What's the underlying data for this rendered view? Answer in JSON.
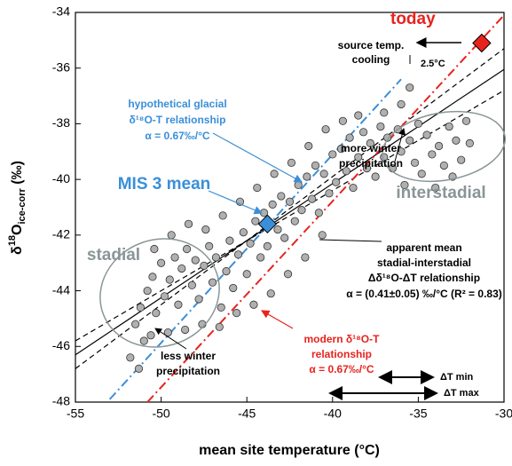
{
  "chart_data": {
    "type": "scatter",
    "xlabel": "mean site temperature (°C)",
    "ylabel_parts": [
      "δ",
      "18",
      "O",
      "ice-corr",
      " (‰)"
    ],
    "xlim": [
      -55,
      -30
    ],
    "xticks": [
      -55,
      -50,
      -45,
      -40,
      -35,
      -30
    ],
    "ylim": [
      -48,
      -34
    ],
    "yticks": [
      -48,
      -46,
      -44,
      -42,
      -40,
      -38,
      -36,
      -34
    ],
    "series": [
      {
        "color": "#b0b0b0",
        "x": [
          -51.5,
          -51.2,
          -51,
          -50.8,
          -50.5,
          -50.3,
          -50,
          -49.8,
          -49.5,
          -49.2,
          -49,
          -48.8,
          -48.5,
          -48.2,
          -48,
          -47.8,
          -47.5,
          -47.2,
          -47,
          -46.8,
          -46.5,
          -46.2,
          -46,
          -45.8,
          -45.5,
          -45.2,
          -45,
          -44.8,
          -44.5,
          -44.2,
          -44,
          -43.8,
          -43.5,
          -43.2,
          -43,
          -42.8,
          -42.5,
          -42.2,
          -42,
          -41.8,
          -41.5,
          -41.2,
          -41,
          -40.8,
          -40.5,
          -40.2,
          -40,
          -39.8,
          -39.5,
          -39.2,
          -39,
          -38.8,
          -38.5,
          -38.2,
          -38,
          -37.8,
          -37.5,
          -37.2,
          -37,
          -36.8,
          -36.5,
          -36.2,
          -36,
          -35.8,
          -35.5,
          -35.2,
          -35,
          -34.8,
          -34.5,
          -34.2,
          -34,
          -33.8,
          -33.5,
          -33.2,
          -33,
          -32.8,
          -32.5,
          -32.2,
          -32,
          -35.5,
          -36,
          -37,
          -38.5,
          -51.8,
          -51.3,
          -50.6,
          -49.6,
          -48.6,
          -47.6,
          -46.6,
          -45.6,
          -44.6,
          -43.6,
          -42.6,
          -41.6,
          -40.6,
          -50.4,
          -49.4,
          -48.4,
          -47.4,
          -46.4,
          -45.4,
          -44.4,
          -43.4,
          -42.4,
          -41.4,
          -40.4,
          -39.4
        ],
        "values": [
          -45.2,
          -44.6,
          -45.8,
          -44,
          -43.5,
          -44.8,
          -43,
          -44.2,
          -43.6,
          -42.8,
          -44.5,
          -43.2,
          -42.5,
          -43.8,
          -42.9,
          -44.3,
          -43.1,
          -42.4,
          -43.7,
          -42.8,
          -44.6,
          -43.3,
          -42.2,
          -43.9,
          -42.7,
          -41.9,
          -43.4,
          -42.3,
          -41.5,
          -42.8,
          -41.2,
          -42.4,
          -40.9,
          -41.8,
          -40.6,
          -42.1,
          -40.8,
          -41.5,
          -40.2,
          -41.1,
          -39.9,
          -40.7,
          -39.5,
          -41.2,
          -39.8,
          -40.5,
          -39.1,
          -40.1,
          -38.9,
          -39.7,
          -38.5,
          -40.3,
          -39.2,
          -38.3,
          -39.6,
          -38.7,
          -39.9,
          -38.1,
          -39.2,
          -38.5,
          -39.6,
          -38.2,
          -39,
          -40.2,
          -38.6,
          -39.4,
          -38,
          -39.8,
          -38.4,
          -39.1,
          -40.3,
          -38.8,
          -39.5,
          -38.1,
          -39.9,
          -38.6,
          -39.3,
          -37.9,
          -38.7,
          -36.7,
          -37.3,
          -37.6,
          -37.7,
          -46.4,
          -46.8,
          -45.6,
          -45.5,
          -45.4,
          -45.2,
          -45.3,
          -44.8,
          -44.5,
          -44.1,
          -43.4,
          -42.8,
          -42,
          -42.5,
          -42,
          -41.6,
          -41.8,
          -41.3,
          -40.8,
          -40.3,
          -39.8,
          -39.4,
          -38.8,
          -38.2,
          -37.9
        ]
      }
    ],
    "highlights": [
      {
        "color": "#3a8fd8",
        "x": -43.8,
        "value": -41.6
      },
      {
        "color": "#e8231e",
        "x": -31.3,
        "value": -35.1
      }
    ],
    "fit_lines": [
      {
        "color": "#000000",
        "style": "solid",
        "x": [
          -55,
          -30
        ],
        "values": [
          -46.3,
          -36.05
        ]
      },
      {
        "color": "#000000",
        "style": "dashed",
        "x": [
          -55,
          -30
        ],
        "values": [
          -45.8,
          -36.8
        ]
      },
      {
        "color": "#000000",
        "style": "dashed",
        "x": [
          -55,
          -30
        ],
        "values": [
          -46.8,
          -35.3
        ]
      },
      {
        "color": "#3a8fd8",
        "style": "dashdot",
        "x": [
          -53,
          -36
        ],
        "values": [
          -47.9,
          -36.4
        ]
      },
      {
        "color": "#e8231e",
        "style": "dashdot",
        "x": [
          -50.8,
          -30
        ],
        "values": [
          -48,
          -34.1
        ]
      }
    ],
    "annotations": [
      {
        "text": "today",
        "color": "#e8231e"
      },
      {
        "text": "source temp.",
        "color": "#000000"
      },
      {
        "text": "cooling",
        "color": "#000000"
      },
      {
        "text": "2.5°C",
        "color": "#000000"
      },
      {
        "text": "more winter",
        "color": "#000000"
      },
      {
        "text": "precipitation",
        "color": "#000000"
      },
      {
        "text": "hypothetical glacial",
        "color": "#3a8fd8"
      },
      {
        "text": "δ¹⁸O-T relationship",
        "color": "#3a8fd8"
      },
      {
        "text": "α = 0.67‰/°C",
        "color": "#3a8fd8"
      },
      {
        "text": "MIS 3 mean",
        "color": "#3a8fd8"
      },
      {
        "text": "interstadial",
        "color": "#8a9598"
      },
      {
        "text": "stadial",
        "color": "#8a9598"
      },
      {
        "text": "apparent mean",
        "color": "#000000"
      },
      {
        "text": "stadial-interstadial",
        "color": "#000000"
      },
      {
        "text": "Δδ¹⁸O-ΔT relationship",
        "color": "#000000"
      },
      {
        "text": "α = (0.41±0.05) ‰/°C (R² = 0.83)",
        "color": "#000000"
      },
      {
        "text": "less winter",
        "color": "#000000"
      },
      {
        "text": "precipitation",
        "color": "#000000"
      },
      {
        "text": "modern δ¹⁸O-T",
        "color": "#e8231e"
      },
      {
        "text": "relationship",
        "color": "#e8231e"
      },
      {
        "text": "α = 0.67‰/°C",
        "color": "#e8231e"
      },
      {
        "text": "ΔT min",
        "color": "#000000"
      },
      {
        "text": "ΔT max",
        "color": "#000000"
      }
    ]
  }
}
